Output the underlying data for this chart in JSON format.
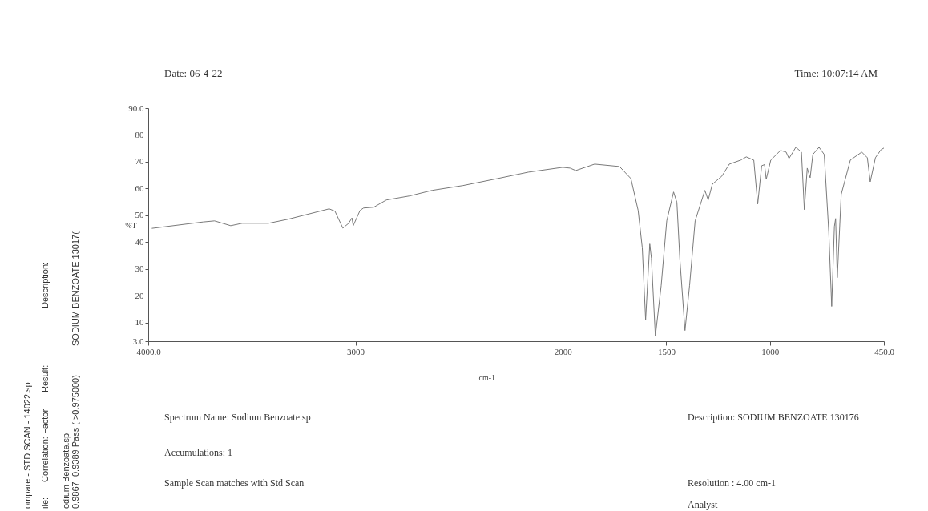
{
  "chart_data": {
    "type": "line",
    "xlabel": "cm-1",
    "ylabel": "%T",
    "x": [
      3983,
      3735,
      3680,
      3602,
      3547,
      3420,
      3326,
      3127,
      3099,
      3061,
      3033,
      3017,
      3011,
      2978,
      2961,
      2912,
      2851,
      2740,
      2630,
      2481,
      2315,
      2166,
      2000,
      1964,
      1937,
      1846,
      1726,
      1671,
      1636,
      1616,
      1600,
      1580,
      1572,
      1553,
      1525,
      1498,
      1465,
      1449,
      1435,
      1410,
      1388,
      1361,
      1314,
      1298,
      1278,
      1232,
      1196,
      1141,
      1114,
      1078,
      1059,
      1040,
      1026,
      1018,
      996,
      949,
      922,
      908,
      875,
      848,
      834,
      820,
      806,
      793,
      763,
      738,
      716,
      702,
      689,
      683,
      675,
      656,
      612,
      557,
      530,
      516,
      491,
      464,
      450
    ],
    "series": [
      {
        "color": "#7a7a7a",
        "values": [
          45.1,
          47.5,
          47.9,
          46.1,
          47.0,
          47.0,
          48.5,
          52.4,
          51.5,
          45.2,
          47.0,
          49.0,
          46.1,
          51.8,
          52.7,
          53.0,
          55.7,
          57.2,
          59.3,
          61.1,
          63.7,
          66.1,
          67.9,
          67.6,
          66.7,
          69.1,
          68.2,
          63.7,
          51.8,
          37.8,
          11.0,
          39.3,
          33.9,
          4.9,
          23.7,
          47.9,
          58.7,
          54.8,
          33.9,
          7.0,
          23.7,
          47.9,
          59.3,
          55.7,
          61.6,
          64.6,
          69.1,
          70.6,
          71.8,
          70.6,
          54.2,
          68.5,
          68.9,
          63.4,
          70.6,
          74.2,
          73.6,
          71.2,
          75.4,
          73.6,
          52.1,
          67.6,
          64.0,
          72.7,
          75.4,
          72.7,
          43.7,
          16.0,
          45.8,
          48.8,
          26.7,
          57.8,
          70.6,
          73.6,
          71.5,
          62.5,
          71.5,
          74.5,
          75.1
        ]
      }
    ],
    "xlim": [
      4000,
      450
    ],
    "xticks": [
      {
        "value": 4000,
        "label": "4000.0"
      },
      3000,
      2000,
      1500,
      1000,
      {
        "value": 450,
        "label": "450.0"
      }
    ],
    "ylim": [
      3,
      90
    ],
    "yticks": [
      {
        "value": 3,
        "label": "3.0"
      },
      10,
      20,
      30,
      40,
      50,
      60,
      70,
      80,
      {
        "value": 90,
        "label": "90.0"
      }
    ],
    "grid": false,
    "marker": "none",
    "line_style": "solid",
    "annotations": [
      "Date: 06-4-22",
      "Time: 10:07:14 AM",
      "Spectrum Name: Sodium Benzoate.sp",
      "Accumulations: 1",
      "Sample Scan matches with Std Scan",
      "Description: SODIUM BENZOATE 130176",
      "Resolution : 4.00 cm-1",
      "Analyst -",
      "ompare - STD SCAN - 14022.sp",
      "ile:",
      "Correlation: Factor:",
      "Result:",
      "Description:",
      "odium Benzoate.sp",
      "0.9867",
      "0.9389 Pass ( >0.975000)",
      "SODIUM BENZOATE 13017("
    ]
  }
}
